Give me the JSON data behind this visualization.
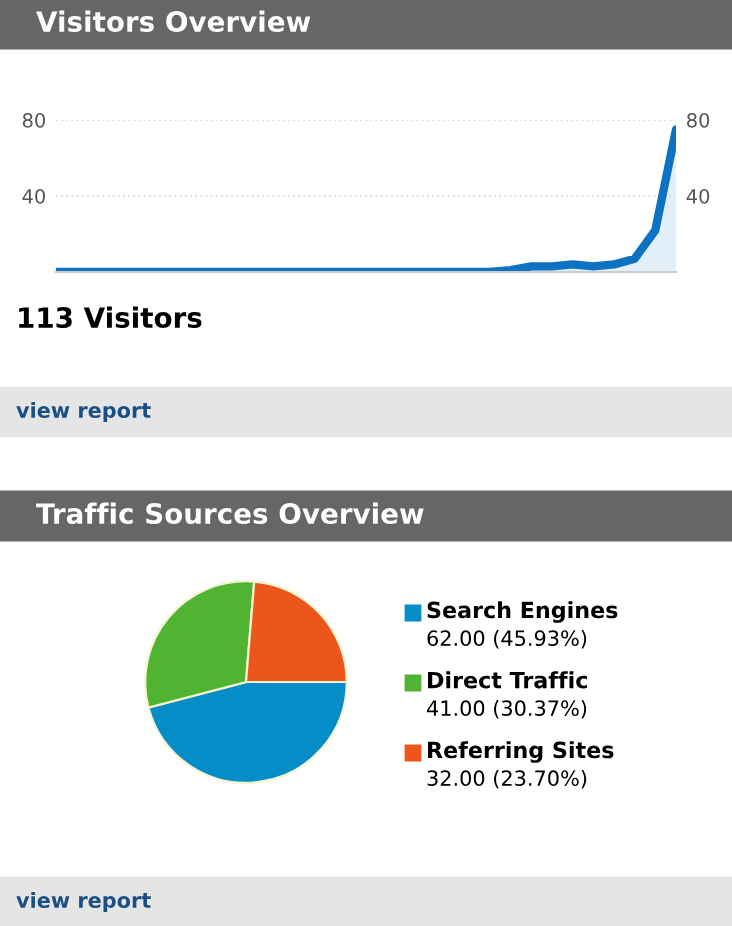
{
  "chart_data": [
    {
      "type": "area",
      "title": "Visitors Overview",
      "categories": [
        null,
        null,
        null,
        null,
        null,
        null,
        null,
        null,
        null,
        null,
        null,
        null,
        null,
        null,
        null,
        null,
        null,
        null,
        null,
        null,
        null,
        null,
        null,
        null,
        null,
        null,
        null,
        null,
        null,
        null,
        null
      ],
      "series": [
        {
          "color": "#0d72c2",
          "values": [
            0,
            0,
            0,
            0,
            0,
            0,
            0,
            0,
            0,
            0,
            0,
            0,
            0,
            0,
            0,
            0,
            0,
            0,
            0,
            0,
            0,
            0,
            1,
            3,
            3,
            4,
            3,
            4,
            7,
            22,
            75
          ]
        }
      ],
      "ylim": [
        0,
        80
      ],
      "yticks": [
        {
          "value": 0,
          "label": null
        },
        40,
        80
      ],
      "y2lim": [
        0,
        80
      ],
      "y2ticks": [
        40,
        80
      ],
      "tick_labels": "y",
      "grid": "y",
      "annotations": [
        "113 Visitors",
        "view report"
      ]
    },
    {
      "type": "pie",
      "title": "Traffic Sources Overview",
      "categories": [
        "Search Engines",
        "Direct Traffic",
        "Referring Sites"
      ],
      "values": [
        62.0,
        41.0,
        32.0
      ],
      "colors": [
        "#058dc7",
        "#50b432",
        "#ed561b"
      ],
      "value_labels": [
        "62.00 (45.93%)",
        "41.00 (30.37%)",
        "32.00 (23.70%)"
      ],
      "legend": "right",
      "annotations": [
        "view report"
      ]
    }
  ]
}
